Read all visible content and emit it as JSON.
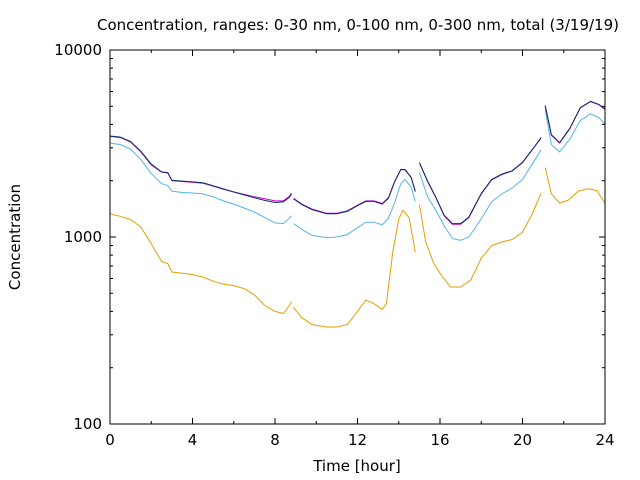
{
  "chart_data": {
    "type": "line",
    "title": "Concentration, ranges: 0-30 nm, 0-100 nm, 0-300 nm, total (3/19/19)",
    "xlabel": "Time [hour]",
    "ylabel": "Concentration",
    "xlim": [
      0,
      24
    ],
    "ylim": [
      100,
      10000
    ],
    "yscale": "log",
    "grid": false,
    "legend": "none",
    "x_ticks": [
      0,
      4,
      8,
      12,
      16,
      20,
      24
    ],
    "x_tick_labels": [
      "0",
      "4",
      "8",
      "12",
      "16",
      "20",
      "24"
    ],
    "y_ticks": [
      100,
      1000,
      10000
    ],
    "y_tick_labels": [
      "100",
      "1000",
      "10000"
    ],
    "series": [
      {
        "color": "#e69f00",
        "segments": [
          [
            [
              0,
              1330
            ],
            [
              0.5,
              1290
            ],
            [
              1,
              1240
            ],
            [
              1.5,
              1130
            ],
            [
              2,
              920
            ],
            [
              2.5,
              740
            ],
            [
              2.8,
              720
            ],
            [
              3,
              650
            ],
            [
              3.5,
              640
            ],
            [
              4,
              630
            ],
            [
              4.5,
              610
            ],
            [
              5,
              580
            ],
            [
              5.5,
              560
            ],
            [
              6,
              550
            ],
            [
              6.5,
              530
            ],
            [
              7,
              490
            ],
            [
              7.5,
              430
            ],
            [
              8,
              400
            ],
            [
              8.4,
              390
            ],
            [
              8.7,
              430
            ],
            [
              8.8,
              450
            ]
          ],
          [
            [
              8.9,
              420
            ],
            [
              9.3,
              370
            ],
            [
              9.8,
              340
            ],
            [
              10.5,
              330
            ],
            [
              11,
              330
            ],
            [
              11.5,
              340
            ],
            [
              12,
              400
            ],
            [
              12.4,
              460
            ],
            [
              12.8,
              440
            ],
            [
              13.2,
              410
            ],
            [
              13.4,
              440
            ],
            [
              13.7,
              820
            ],
            [
              14,
              1250
            ],
            [
              14.2,
              1390
            ],
            [
              14.5,
              1270
            ],
            [
              14.8,
              830
            ]
          ],
          [
            [
              15,
              1490
            ],
            [
              15.3,
              950
            ],
            [
              15.7,
              720
            ],
            [
              16,
              640
            ],
            [
              16.5,
              540
            ],
            [
              17,
              540
            ],
            [
              17.5,
              590
            ],
            [
              18,
              770
            ],
            [
              18.5,
              900
            ],
            [
              19,
              940
            ],
            [
              19.5,
              970
            ],
            [
              20,
              1060
            ],
            [
              20.5,
              1350
            ],
            [
              20.9,
              1720
            ]
          ],
          [
            [
              21.1,
              2350
            ],
            [
              21.4,
              1700
            ],
            [
              21.8,
              1520
            ],
            [
              22.2,
              1570
            ],
            [
              22.7,
              1760
            ],
            [
              23.2,
              1810
            ],
            [
              23.6,
              1770
            ],
            [
              24,
              1520
            ]
          ]
        ]
      },
      {
        "color": "#56b4e9",
        "segments": [
          [
            [
              0,
              3180
            ],
            [
              0.5,
              3120
            ],
            [
              1,
              2950
            ],
            [
              1.5,
              2600
            ],
            [
              2,
              2180
            ],
            [
              2.5,
              1930
            ],
            [
              2.8,
              1880
            ],
            [
              3,
              1760
            ],
            [
              3.5,
              1730
            ],
            [
              4,
              1720
            ],
            [
              4.5,
              1700
            ],
            [
              5,
              1640
            ],
            [
              5.5,
              1560
            ],
            [
              6,
              1500
            ],
            [
              6.5,
              1430
            ],
            [
              7,
              1360
            ],
            [
              7.5,
              1270
            ],
            [
              8,
              1190
            ],
            [
              8.4,
              1180
            ],
            [
              8.7,
              1260
            ],
            [
              8.8,
              1300
            ]
          ],
          [
            [
              8.9,
              1180
            ],
            [
              9.3,
              1100
            ],
            [
              9.8,
              1020
            ],
            [
              10.5,
              990
            ],
            [
              11,
              1000
            ],
            [
              11.5,
              1030
            ],
            [
              12,
              1120
            ],
            [
              12.4,
              1200
            ],
            [
              12.8,
              1200
            ],
            [
              13.2,
              1160
            ],
            [
              13.5,
              1260
            ],
            [
              13.8,
              1520
            ],
            [
              14.1,
              1930
            ],
            [
              14.3,
              2030
            ],
            [
              14.6,
              1850
            ],
            [
              14.8,
              1550
            ]
          ],
          [
            [
              15,
              2220
            ],
            [
              15.4,
              1640
            ],
            [
              15.8,
              1390
            ],
            [
              16.2,
              1150
            ],
            [
              16.6,
              980
            ],
            [
              17,
              960
            ],
            [
              17.4,
              1000
            ],
            [
              18,
              1250
            ],
            [
              18.5,
              1540
            ],
            [
              19,
              1700
            ],
            [
              19.5,
              1830
            ],
            [
              20,
              2030
            ],
            [
              20.5,
              2480
            ],
            [
              20.9,
              2930
            ]
          ],
          [
            [
              21.1,
              4820
            ],
            [
              21.4,
              3120
            ],
            [
              21.8,
              2850
            ],
            [
              22.3,
              3340
            ],
            [
              22.8,
              4200
            ],
            [
              23.3,
              4550
            ],
            [
              23.7,
              4350
            ],
            [
              24,
              4020
            ]
          ]
        ]
      },
      {
        "color": "#cc00cc",
        "segments": [
          [
            [
              0,
              3450
            ],
            [
              0.5,
              3400
            ],
            [
              1,
              3220
            ],
            [
              1.5,
              2850
            ],
            [
              2,
              2430
            ],
            [
              2.5,
              2220
            ],
            [
              2.8,
              2200
            ],
            [
              3,
              2000
            ],
            [
              3.5,
              1980
            ],
            [
              4,
              1960
            ],
            [
              4.5,
              1940
            ],
            [
              5,
              1870
            ],
            [
              5.5,
              1800
            ],
            [
              6,
              1740
            ],
            [
              6.5,
              1690
            ],
            [
              7,
              1640
            ],
            [
              7.5,
              1600
            ],
            [
              8,
              1560
            ],
            [
              8.4,
              1560
            ],
            [
              8.7,
              1650
            ],
            [
              8.8,
              1720
            ]
          ],
          [
            [
              8.9,
              1610
            ],
            [
              9.3,
              1500
            ],
            [
              9.8,
              1410
            ],
            [
              10.5,
              1340
            ],
            [
              11,
              1340
            ],
            [
              11.5,
              1380
            ],
            [
              12,
              1480
            ],
            [
              12.4,
              1560
            ],
            [
              12.8,
              1560
            ],
            [
              13.2,
              1510
            ],
            [
              13.5,
              1620
            ],
            [
              13.8,
              1980
            ],
            [
              14.1,
              2300
            ],
            [
              14.3,
              2300
            ],
            [
              14.6,
              2090
            ],
            [
              14.8,
              1760
            ]
          ],
          [
            [
              15,
              2490
            ],
            [
              15.4,
              1980
            ],
            [
              15.8,
              1620
            ],
            [
              16.2,
              1300
            ],
            [
              16.6,
              1170
            ],
            [
              17,
              1170
            ],
            [
              17.4,
              1270
            ],
            [
              18,
              1700
            ],
            [
              18.5,
              2020
            ],
            [
              19,
              2160
            ],
            [
              19.5,
              2250
            ],
            [
              20,
              2500
            ],
            [
              20.5,
              2950
            ],
            [
              20.9,
              3380
            ]
          ],
          [
            [
              21.1,
              5020
            ],
            [
              21.4,
              3500
            ],
            [
              21.8,
              3180
            ],
            [
              22.3,
              3800
            ],
            [
              22.8,
              4900
            ],
            [
              23.3,
              5300
            ],
            [
              23.7,
              5100
            ],
            [
              24,
              4820
            ]
          ]
        ]
      },
      {
        "color": "#003366",
        "segments": [
          [
            [
              0,
              3470
            ],
            [
              0.5,
              3420
            ],
            [
              1,
              3240
            ],
            [
              1.5,
              2870
            ],
            [
              2,
              2450
            ],
            [
              2.5,
              2230
            ],
            [
              2.8,
              2210
            ],
            [
              3,
              2010
            ],
            [
              3.5,
              1990
            ],
            [
              4,
              1970
            ],
            [
              4.5,
              1950
            ],
            [
              5,
              1880
            ],
            [
              5.5,
              1810
            ],
            [
              6,
              1740
            ],
            [
              6.5,
              1680
            ],
            [
              7,
              1620
            ],
            [
              7.5,
              1570
            ],
            [
              8,
              1530
            ],
            [
              8.4,
              1540
            ],
            [
              8.7,
              1630
            ],
            [
              8.8,
              1700
            ]
          ],
          [
            [
              8.9,
              1600
            ],
            [
              9.3,
              1490
            ],
            [
              9.8,
              1400
            ],
            [
              10.5,
              1330
            ],
            [
              11,
              1330
            ],
            [
              11.5,
              1370
            ],
            [
              12,
              1470
            ],
            [
              12.4,
              1550
            ],
            [
              12.8,
              1550
            ],
            [
              13.2,
              1500
            ],
            [
              13.5,
              1610
            ],
            [
              13.8,
              1970
            ],
            [
              14.1,
              2290
            ],
            [
              14.3,
              2290
            ],
            [
              14.6,
              2080
            ],
            [
              14.8,
              1750
            ]
          ],
          [
            [
              15,
              2500
            ],
            [
              15.4,
              1990
            ],
            [
              15.8,
              1630
            ],
            [
              16.2,
              1310
            ],
            [
              16.6,
              1180
            ],
            [
              17,
              1180
            ],
            [
              17.4,
              1280
            ],
            [
              18,
              1710
            ],
            [
              18.5,
              2030
            ],
            [
              19,
              2170
            ],
            [
              19.5,
              2260
            ],
            [
              20,
              2510
            ],
            [
              20.5,
              2960
            ],
            [
              20.9,
              3400
            ]
          ],
          [
            [
              21.1,
              5050
            ],
            [
              21.4,
              3520
            ],
            [
              21.8,
              3200
            ],
            [
              22.3,
              3820
            ],
            [
              22.8,
              4920
            ],
            [
              23.3,
              5320
            ],
            [
              23.7,
              5120
            ],
            [
              24,
              4850
            ]
          ]
        ]
      }
    ]
  }
}
